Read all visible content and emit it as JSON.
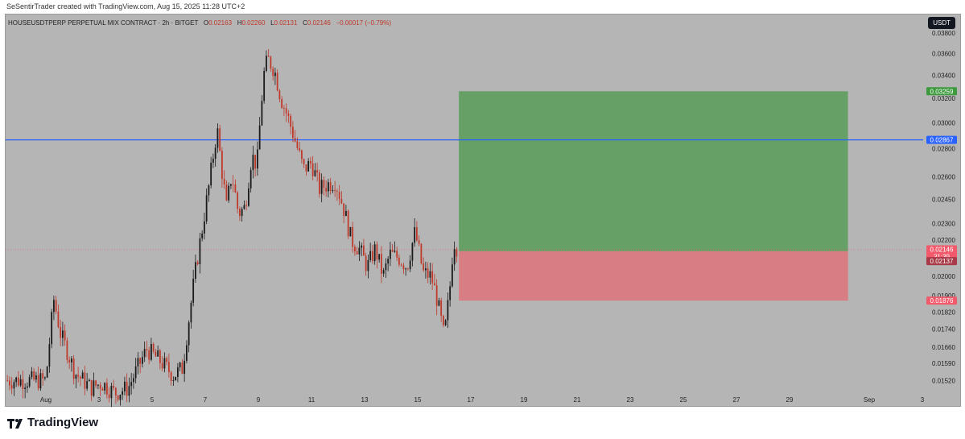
{
  "header": {
    "credit": "SeSentirTrader created with TradingView.com, Aug 15, 2025 11:28 UTC+2"
  },
  "symbol_line": {
    "name": "HOUSEUSDTPERP PERPETUAL MIX CONTRACT · 2h · BITGET",
    "open_label": "O",
    "open": "0.02163",
    "high_label": "H",
    "high": "0.02260",
    "low_label": "L",
    "low": "0.02131",
    "close_label": "C",
    "close": "0.02146",
    "change": "−0.00017 (−0.79%)"
  },
  "currency_badge": "USDT",
  "footer": {
    "logo_text": "TradingView",
    "logo_icon": "tradingview-logo-icon"
  },
  "colors": {
    "background": "#b5b5b5",
    "up_candle": "#1a1a1a",
    "down_candle": "#c0392b",
    "profit_zone": "#67a067",
    "loss_zone": "#d77d83",
    "horizontal_line": "#2962ff",
    "badge_target": "#3d9a3d",
    "badge_line": "#2962ff",
    "badge_last": "#f05a6b",
    "badge_entry": "#a83a48",
    "badge_stop": "#f05a6b"
  },
  "chart_data": {
    "type": "candlestick",
    "y_scale": "log",
    "ylim": [
      0.0147,
      0.0389
    ],
    "x_tick_labels": [
      "Aug",
      "3",
      "5",
      "7",
      "9",
      "11",
      "13",
      "15",
      "17",
      "19",
      "21",
      "23",
      "25",
      "27",
      "29",
      "Sep",
      "3"
    ],
    "y_tick_labels": [
      "0.03800",
      "0.03600",
      "0.03400",
      "0.03200",
      "0.03000",
      "0.02800",
      "0.02600",
      "0.02450",
      "0.02300",
      "0.02200",
      "0.02100",
      "0.02000",
      "0.01900",
      "0.01820",
      "0.01740",
      "0.01660",
      "0.01590",
      "0.01520"
    ],
    "series": [
      {
        "type": "close_path",
        "x_days": [
          0,
          0.3,
          0.55,
          1.1,
          1.7,
          2.1,
          2.6,
          3.1,
          3.8,
          4.3,
          4.8,
          5.15,
          5.4,
          5.6,
          5.9,
          6.15,
          6.45,
          6.6,
          6.8,
          7.0,
          7.25,
          7.5,
          7.75,
          7.95,
          8.2,
          8.35,
          8.6,
          8.85,
          9.1,
          9.4,
          9.7,
          10.0,
          10.3,
          10.6,
          10.9,
          11.2,
          11.5,
          11.8,
          12.1,
          12.4,
          12.7,
          12.95,
          13.3,
          13.6,
          13.9,
          14.2,
          14.5,
          14.7,
          15.0,
          15.2,
          15.35,
          15.5
        ],
        "close": [
          0.0152,
          0.0188,
          0.0172,
          0.0155,
          0.0149,
          0.0151,
          0.0147,
          0.0149,
          0.0165,
          0.016,
          0.0154,
          0.0157,
          0.018,
          0.02,
          0.0228,
          0.0255,
          0.0295,
          0.0268,
          0.024,
          0.0262,
          0.0236,
          0.024,
          0.0275,
          0.0268,
          0.034,
          0.0355,
          0.0345,
          0.032,
          0.0305,
          0.0285,
          0.0265,
          0.027,
          0.0252,
          0.0255,
          0.0257,
          0.024,
          0.022,
          0.0215,
          0.0205,
          0.0215,
          0.02,
          0.0212,
          0.021,
          0.0205,
          0.0225,
          0.0202,
          0.02,
          0.019,
          0.017,
          0.0192,
          0.022,
          0.0215
        ]
      }
    ],
    "position_tool": {
      "start_day": 15.55,
      "end_day": 30.2,
      "entry": 0.02137,
      "target": 0.03259,
      "stop": 0.01876
    },
    "horizontal_line": 0.02867,
    "last_price": {
      "value": "0.02146",
      "countdown": "31:39"
    },
    "price_badges": {
      "target": "0.03259",
      "line": "0.02867",
      "last": "0.02146",
      "countdown": "31:39",
      "entry": "0.02137",
      "stop": "0.01876"
    },
    "grid": false
  }
}
